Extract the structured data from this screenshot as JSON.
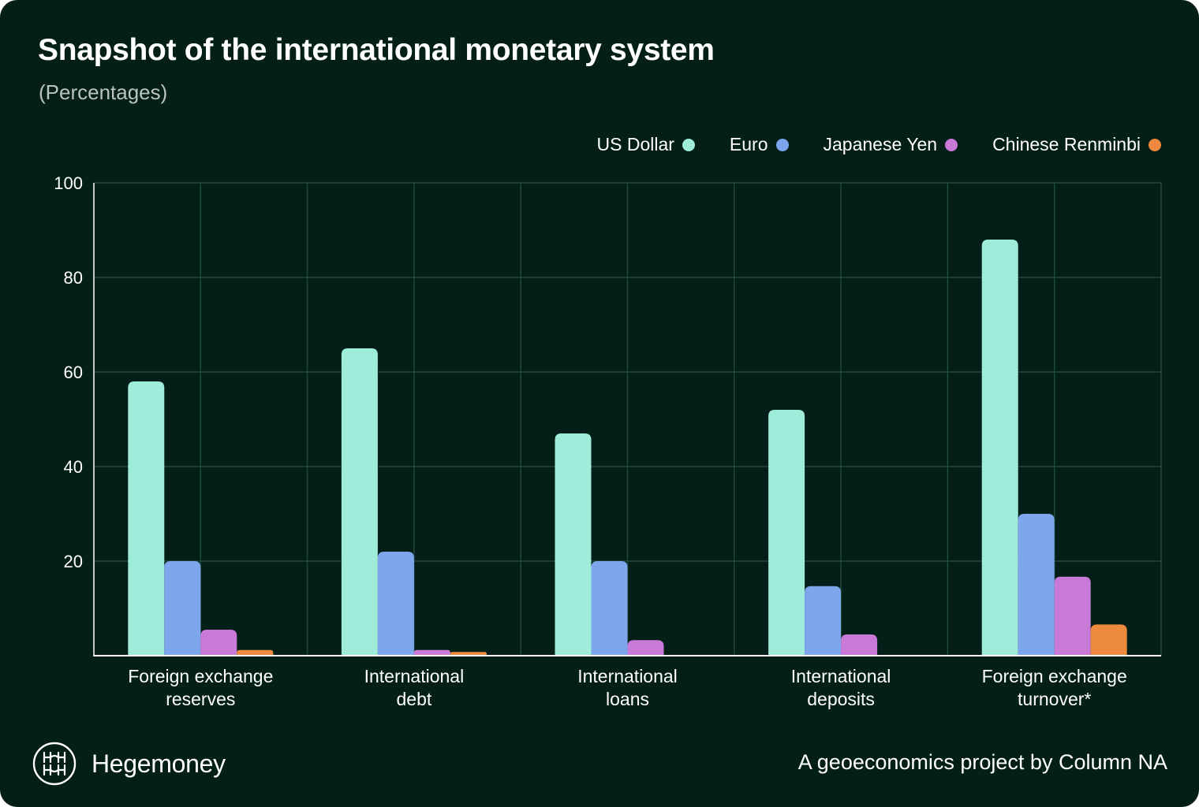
{
  "header": {
    "title": "Snapshot of the international monetary system",
    "subtitle": "(Percentages)"
  },
  "footer": {
    "brand": "Hegemoney",
    "credit": "A geoeconomics project by Column NA"
  },
  "chart_data": {
    "type": "bar",
    "title": "Snapshot of the international monetary system",
    "subtitle": "(Percentages)",
    "xlabel": "",
    "ylabel": "",
    "ylim": [
      0,
      100
    ],
    "yticks": [
      20,
      40,
      60,
      80,
      100
    ],
    "grid": true,
    "legend_position": "top-right",
    "categories": [
      [
        "Foreign exchange",
        "reserves"
      ],
      [
        "International",
        "debt"
      ],
      [
        "International",
        "loans"
      ],
      [
        "International",
        "deposits"
      ],
      [
        "Foreign exchange",
        "turnover*"
      ]
    ],
    "series": [
      {
        "name": "US Dollar",
        "color": "#9eecd9",
        "values": [
          58,
          65,
          47,
          52,
          88
        ]
      },
      {
        "name": "Euro",
        "color": "#7ea6ec",
        "values": [
          20,
          22,
          20,
          14.7,
          30
        ]
      },
      {
        "name": "Japanese Yen",
        "color": "#c97ad8",
        "values": [
          5.5,
          1.2,
          3.3,
          4.5,
          16.7
        ]
      },
      {
        "name": "Chinese Renminbi",
        "color": "#ee8a3e",
        "values": [
          1.2,
          0.8,
          0,
          0,
          6.6
        ]
      }
    ]
  }
}
